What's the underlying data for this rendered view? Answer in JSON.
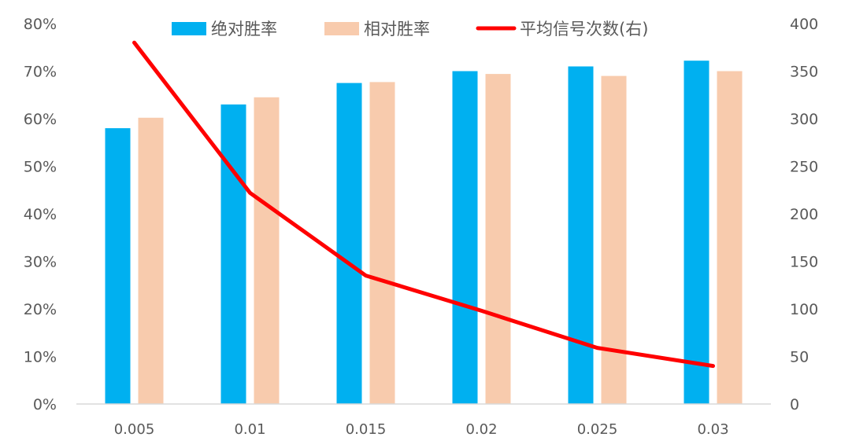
{
  "chart_data": {
    "type": "bar",
    "categories": [
      "0.005",
      "0.01",
      "0.015",
      "0.02",
      "0.025",
      "0.03"
    ],
    "series": [
      {
        "name": "绝对胜率",
        "type": "bar",
        "axis": "left",
        "color": "#00B0F0",
        "values": [
          0.58,
          0.63,
          0.675,
          0.7,
          0.71,
          0.722
        ]
      },
      {
        "name": "相对胜率",
        "type": "bar",
        "axis": "left",
        "color": "#F8CBAD",
        "values": [
          0.602,
          0.645,
          0.677,
          0.694,
          0.69,
          0.7
        ]
      },
      {
        "name": "平均信号次数(右)",
        "type": "line",
        "axis": "right",
        "color": "#FF0000",
        "values": [
          380,
          222,
          135,
          98,
          59,
          40
        ]
      }
    ],
    "y_left": {
      "min": 0,
      "max": 0.8,
      "step": 0.1,
      "tick_labels": [
        "0%",
        "10%",
        "20%",
        "30%",
        "40%",
        "50%",
        "60%",
        "70%",
        "80%"
      ]
    },
    "y_right": {
      "min": 0,
      "max": 400,
      "step": 50,
      "tick_labels": [
        "0",
        "50",
        "100",
        "150",
        "200",
        "250",
        "300",
        "350",
        "400"
      ]
    },
    "grid": false,
    "legend_position": "top"
  }
}
